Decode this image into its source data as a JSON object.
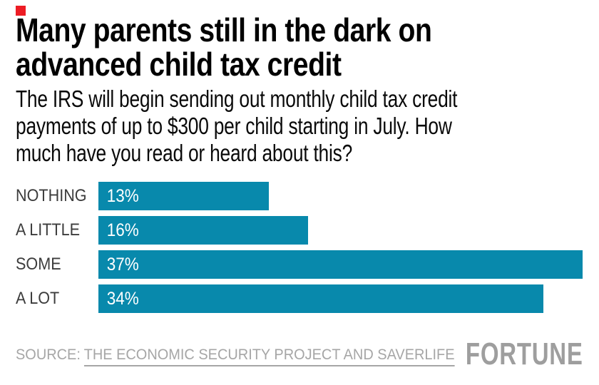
{
  "page": {
    "background": "#ffffff"
  },
  "brand": {
    "mark_color": "#ED1C24"
  },
  "header": {
    "title_lines": [
      "Many parents still in the dark on",
      "advanced child tax credit"
    ],
    "subtitle_lines": [
      "The IRS will begin sending out monthly child tax credit",
      "payments of up to $300 per child starting in July. How",
      "much have you read or heard about this?"
    ]
  },
  "chart_data": {
    "type": "bar",
    "orientation": "horizontal",
    "title": "Many parents still in the dark on advanced child tax credit",
    "question": "The IRS will begin sending out monthly child tax credit payments of up to $300 per child starting in July. How much have you read or heard about this?",
    "categories": [
      "NOTHING",
      "A LITTLE",
      "SOME",
      "A LOT"
    ],
    "values": [
      13,
      16,
      37,
      34
    ],
    "value_labels": [
      "13%",
      "16%",
      "37%",
      "34%"
    ],
    "unit": "percent of respondents",
    "xlim": [
      0,
      37
    ],
    "grid": false,
    "legend": false,
    "bar_color": "#0889AC",
    "category_label_color": "#3C3C3C",
    "value_label_color": "#FFFFFF"
  },
  "footer": {
    "source_prefix": "SOURCE:",
    "source_link_text": "THE ECONOMIC SECURITY PROJECT AND SAVERLIFE",
    "source_color": "#A6A6A6",
    "logo_text": "FORTUNE",
    "logo_color": "#9E9E9E"
  }
}
